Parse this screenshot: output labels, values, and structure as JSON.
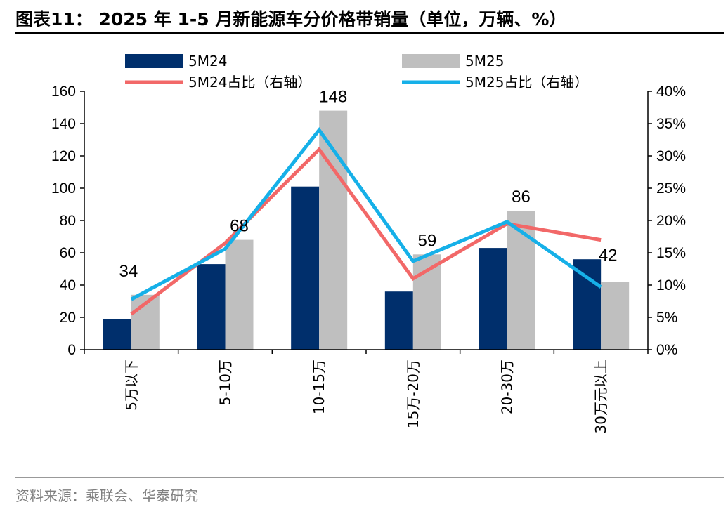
{
  "title": "图表11： 2025 年 1-5 月新能源车分价格带销量（单位，万辆、%）",
  "source": "资料来源：乘联会、华泰研究",
  "chart_data": {
    "type": "bar",
    "categories": [
      "5万以下",
      "5-10万",
      "10-15万",
      "15万-20万",
      "20-30万",
      "30万元以上"
    ],
    "series": [
      {
        "name": "5M24",
        "kind": "bar",
        "axis": "left",
        "color": "#002f6c",
        "values": [
          19,
          53,
          101,
          36,
          63,
          56
        ]
      },
      {
        "name": "5M25",
        "kind": "bar",
        "axis": "left",
        "color": "#bfbfbf",
        "values": [
          34,
          68,
          148,
          59,
          86,
          42
        ]
      },
      {
        "name": "5M24占比（右轴）",
        "kind": "line",
        "axis": "right",
        "color": "#f26868",
        "values": [
          5.5,
          16.5,
          31.0,
          11.0,
          19.5,
          17.0
        ]
      },
      {
        "name": "5M25占比（右轴）",
        "kind": "line",
        "axis": "right",
        "color": "#16b0e8",
        "values": [
          7.8,
          15.6,
          34.0,
          13.7,
          19.8,
          9.7
        ]
      }
    ],
    "data_labels": {
      "series": "5M25",
      "values": [
        "34",
        "68",
        "148",
        "59",
        "86",
        "42"
      ]
    },
    "y_left": {
      "min": 0,
      "max": 160,
      "step": 20,
      "ticks": [
        "0",
        "20",
        "40",
        "60",
        "80",
        "100",
        "120",
        "140",
        "160"
      ]
    },
    "y_right": {
      "min": 0,
      "max": 40,
      "step": 5,
      "ticks": [
        "0%",
        "5%",
        "10%",
        "15%",
        "20%",
        "25%",
        "30%",
        "35%",
        "40%"
      ]
    },
    "legend_position": "top",
    "grid": false
  }
}
